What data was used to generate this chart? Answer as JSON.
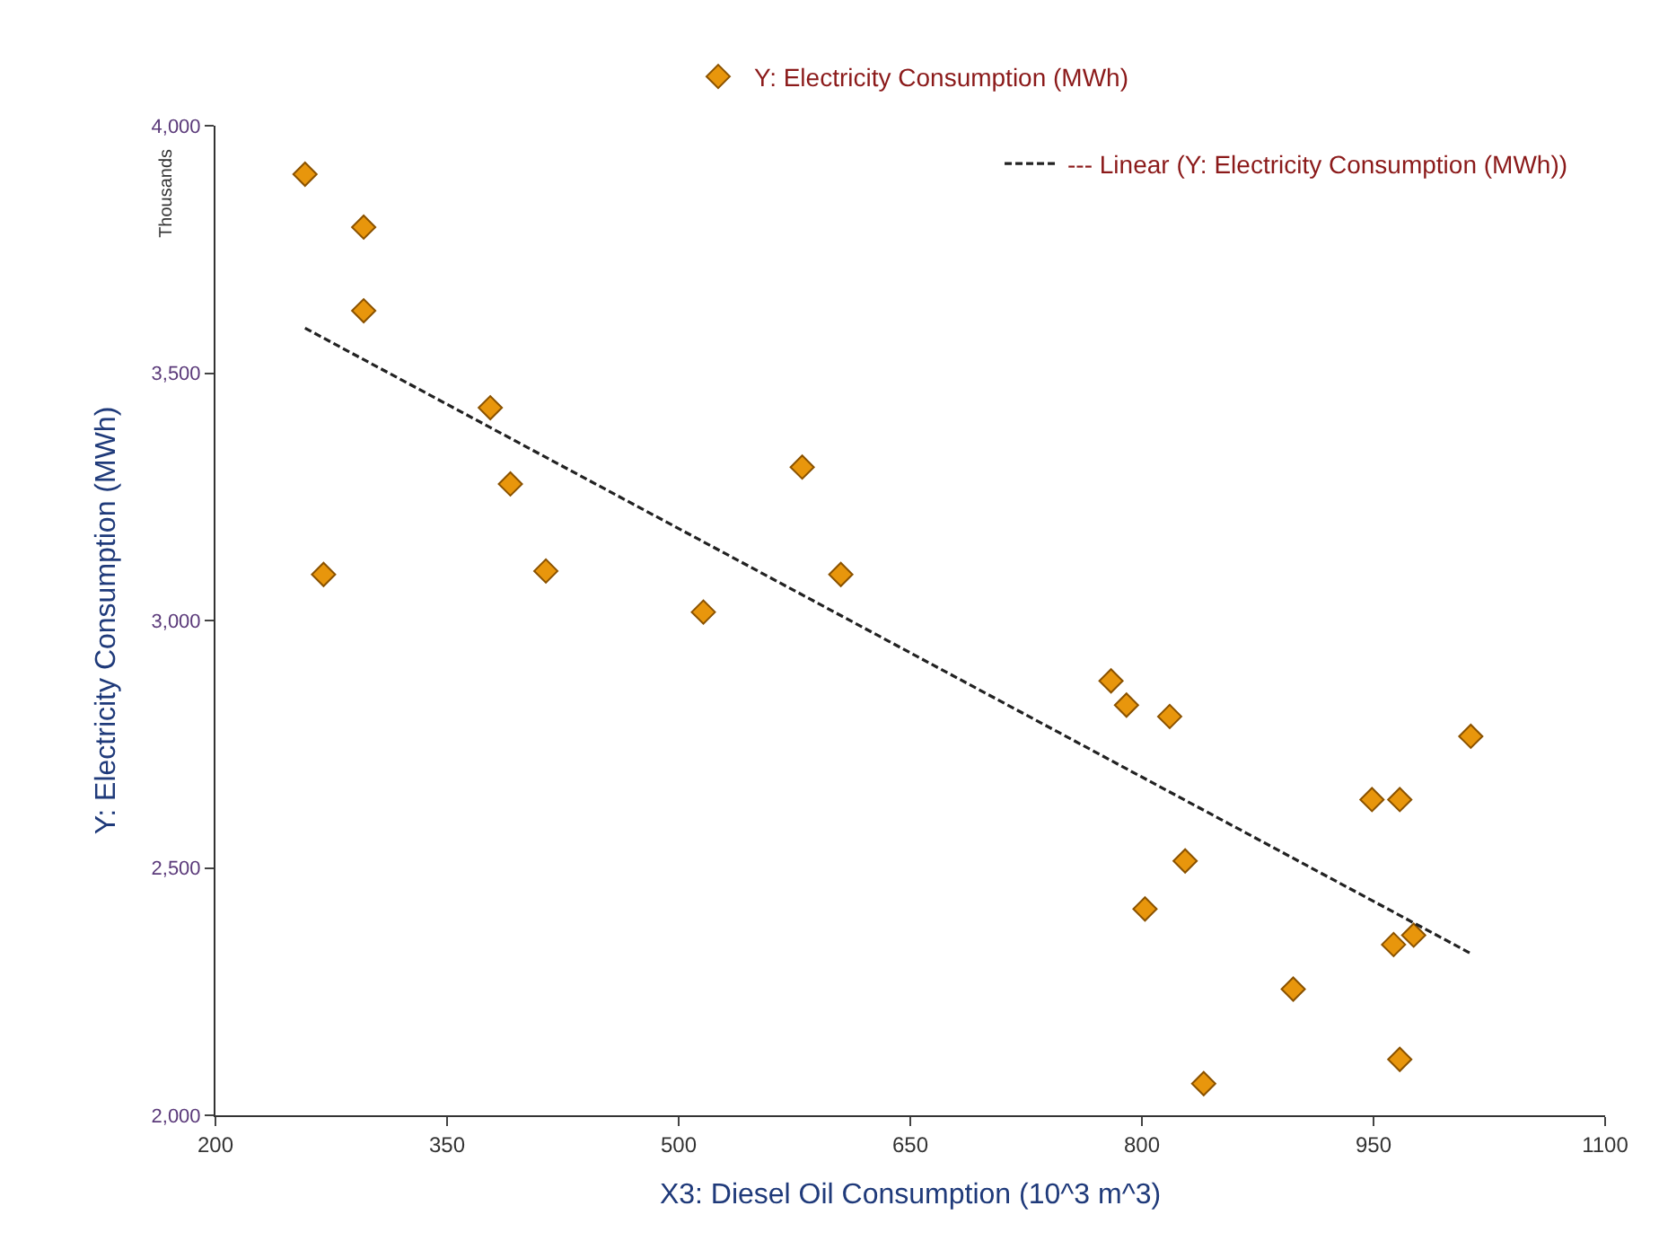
{
  "chart_data": {
    "type": "scatter",
    "xlabel": "X3: Diesel Oil Consumption (10^3 m^3)",
    "ylabel": "Y: Electricity Consumption (MWh)",
    "annotations": [
      "Thousands"
    ],
    "xlim": [
      200,
      1100
    ],
    "xticks": [
      200,
      350,
      500,
      650,
      800,
      950,
      1100
    ],
    "ylim": [
      2000,
      4000
    ],
    "yticks": [
      {
        "value": 2000,
        "label": "2,000"
      },
      {
        "value": 2500,
        "label": "2,500"
      },
      {
        "value": 3000,
        "label": "3,000"
      },
      {
        "value": 3500,
        "label": "3,500"
      },
      {
        "value": 4000,
        "label": "4,000"
      }
    ],
    "legend": "top",
    "marker": "diamond",
    "series": [
      {
        "name": "Y: Electricity Consumption (MWh)",
        "color": "#e8960c",
        "x": [
          258,
          296,
          296,
          270,
          378,
          391,
          414,
          516,
          580,
          605,
          780,
          790,
          818,
          828,
          802,
          898,
          840,
          949,
          967,
          963,
          976,
          967,
          1013
        ],
        "values": [
          3902,
          3795,
          3626,
          3093,
          3430,
          3276,
          3100,
          3017,
          3310,
          3093,
          2878,
          2829,
          2806,
          2514,
          2417,
          2255,
          2064,
          2638,
          2638,
          2345,
          2364,
          2113,
          2766
        ]
      },
      {
        "name": "--- Linear (Y: Electricity Consumption (MWh))",
        "color": "#222222",
        "type": "line",
        "line_style": "dashed",
        "marker": "none",
        "x": [
          258,
          1013
        ],
        "values": [
          3591,
          2327
        ]
      }
    ]
  }
}
